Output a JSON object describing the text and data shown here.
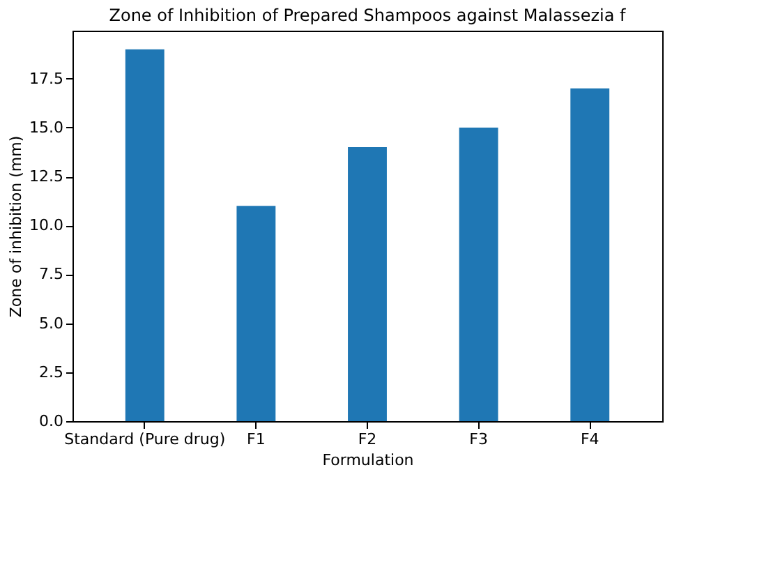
{
  "chart_data": {
    "type": "bar",
    "title": "Zone of Inhibition of Prepared Shampoos against Malassezia f",
    "xlabel": "Formulation",
    "ylabel": "Zone of inhibition (mm)",
    "categories": [
      "Standard (Pure drug)",
      "F1",
      "F2",
      "F3",
      "F4"
    ],
    "values": [
      19,
      11,
      14,
      15,
      17
    ],
    "color": "#1f77b4",
    "ylim": [
      0,
      19.95
    ],
    "yticks": [
      {
        "value": 0,
        "label": "0.0"
      },
      2.5,
      {
        "value": 5,
        "label": "5.0"
      },
      7.5,
      {
        "value": 10,
        "label": "10.0"
      },
      12.5,
      {
        "value": 15,
        "label": "15.0"
      },
      17.5
    ],
    "grid": false
  }
}
